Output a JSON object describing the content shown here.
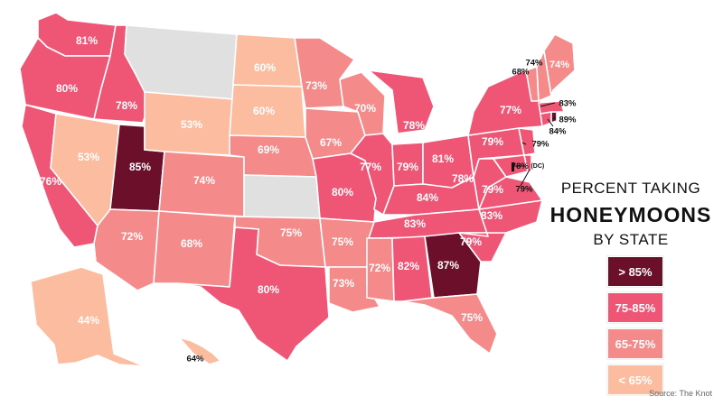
{
  "title": {
    "line1": "PERCENT TAKING",
    "line2": "HONEYMOONS",
    "line3": "BY STATE"
  },
  "legend": [
    {
      "label": "> 85%",
      "color": "#6b0f2a"
    },
    {
      "label": "75-85%",
      "color": "#ef5676"
    },
    {
      "label": "65-75%",
      "color": "#f48a8a"
    },
    {
      "label": "< 65%",
      "color": "#fbbc9f"
    }
  ],
  "source": "Source: The Knot",
  "states": {
    "WA": {
      "value": "81%",
      "bin": 1
    },
    "OR": {
      "value": "80%",
      "bin": 1
    },
    "CA": {
      "value": "76%",
      "bin": 1
    },
    "ID": {
      "value": "78%",
      "bin": 1
    },
    "NV": {
      "value": "53%",
      "bin": 3
    },
    "UT": {
      "value": "85%",
      "bin": 0
    },
    "AZ": {
      "value": "72%",
      "bin": 2
    },
    "MT": {
      "value": "",
      "bin": 4
    },
    "WY": {
      "value": "53%",
      "bin": 3
    },
    "CO": {
      "value": "74%",
      "bin": 2
    },
    "NM": {
      "value": "68%",
      "bin": 2
    },
    "ND": {
      "value": "60%",
      "bin": 3
    },
    "SD": {
      "value": "60%",
      "bin": 3
    },
    "NE": {
      "value": "69%",
      "bin": 2
    },
    "KS": {
      "value": "",
      "bin": 4
    },
    "OK": {
      "value": "75%",
      "bin": 2
    },
    "TX": {
      "value": "80%",
      "bin": 1
    },
    "MN": {
      "value": "73%",
      "bin": 2
    },
    "IA": {
      "value": "67%",
      "bin": 2
    },
    "MO": {
      "value": "80%",
      "bin": 1
    },
    "AR": {
      "value": "75%",
      "bin": 2
    },
    "LA": {
      "value": "73%",
      "bin": 2
    },
    "WI": {
      "value": "70%",
      "bin": 2
    },
    "IL": {
      "value": "77%",
      "bin": 1
    },
    "MI": {
      "value": "78%",
      "bin": 1
    },
    "IN": {
      "value": "79%",
      "bin": 1
    },
    "OH": {
      "value": "81%",
      "bin": 1
    },
    "KY": {
      "value": "84%",
      "bin": 1
    },
    "TN": {
      "value": "83%",
      "bin": 1
    },
    "MS": {
      "value": "72%",
      "bin": 2
    },
    "AL": {
      "value": "82%",
      "bin": 1
    },
    "GA": {
      "value": "87%",
      "bin": 0
    },
    "FL": {
      "value": "75%",
      "bin": 2
    },
    "SC": {
      "value": "79%",
      "bin": 1
    },
    "NC": {
      "value": "83%",
      "bin": 1
    },
    "VA": {
      "value": "79%",
      "bin": 1
    },
    "WV": {
      "value": "78%",
      "bin": 1
    },
    "PA": {
      "value": "79%",
      "bin": 1
    },
    "NY": {
      "value": "77%",
      "bin": 1
    },
    "MD": {
      "value": "78%",
      "bin": 1
    },
    "DC": {
      "value": "78% (DC)",
      "bin": 1
    },
    "DE": {
      "value": "79%",
      "bin": 1
    },
    "NJ": {
      "value": "79%",
      "bin": 1
    },
    "CT": {
      "value": "84%",
      "bin": 1
    },
    "RI": {
      "value": "89%",
      "bin": 0
    },
    "MA": {
      "value": "83%",
      "bin": 1
    },
    "VT": {
      "value": "74%",
      "bin": 2
    },
    "NH": {
      "value": "68%",
      "bin": 2
    },
    "ME": {
      "value": "74%",
      "bin": 2
    },
    "AK": {
      "value": "44%",
      "bin": 3
    },
    "HI": {
      "value": "64%",
      "bin": 3
    }
  }
}
